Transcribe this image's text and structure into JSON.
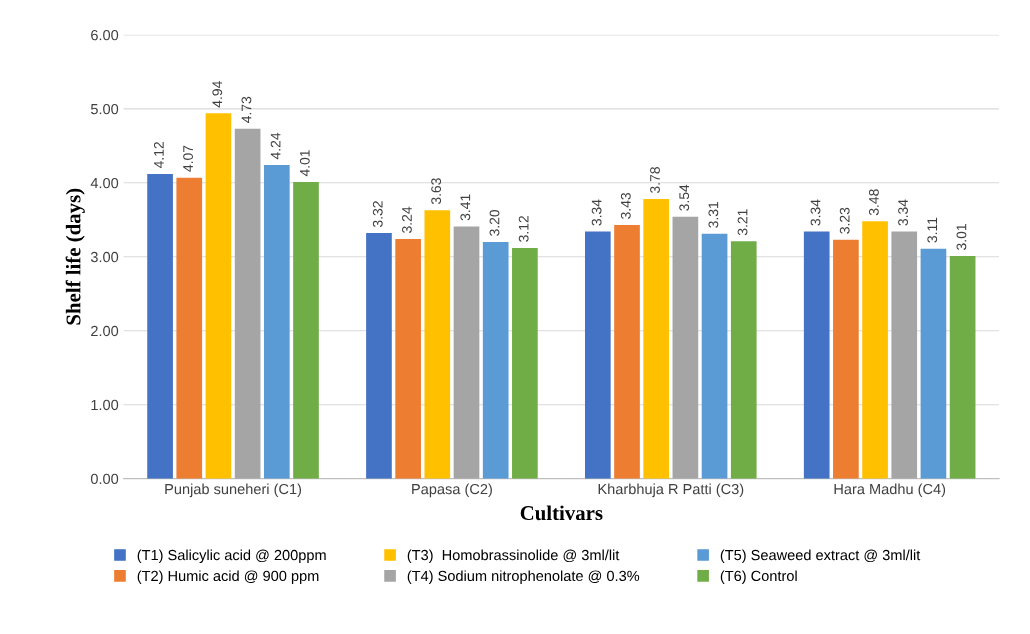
{
  "chart_data": {
    "type": "bar",
    "xlabel": "Cultivars",
    "ylabel": "Shelf life (days)",
    "categories": [
      "Punjab suneheri (C1)",
      "Papasa (C2)",
      "Kharbhuja R Patti (C3)",
      "Hara Madhu (C4)"
    ],
    "series": [
      {
        "name": "(T1) Salicylic acid @ 200ppm",
        "color": "#4472c4",
        "values": [
          4.12,
          3.32,
          3.34,
          3.34
        ],
        "value_labels": [
          "4.12",
          "3.32",
          "3.34",
          "3.34"
        ]
      },
      {
        "name": "(T2) Humic acid @ 900 ppm",
        "color": "#ed7d31",
        "values": [
          4.07,
          3.24,
          3.43,
          3.23
        ],
        "value_labels": [
          "4.07",
          "3.24",
          "3.43",
          "3.23"
        ]
      },
      {
        "name": "(T3)  Homobrassinolide @ 3ml/lit",
        "color": "#ffc000",
        "values": [
          4.94,
          3.63,
          3.78,
          3.48
        ],
        "value_labels": [
          "4.94",
          "3.63",
          "3.78",
          "3.48"
        ]
      },
      {
        "name": "(T4) Sodium nitrophenolate @ 0.3%",
        "color": "#a5a5a5",
        "values": [
          4.73,
          3.41,
          3.54,
          3.34
        ],
        "value_labels": [
          "4.73",
          "3.41",
          "3.54",
          "3.34"
        ]
      },
      {
        "name": "(T5) Seaweed extract @ 3ml/lit",
        "color": "#5b9bd5",
        "values": [
          4.24,
          3.2,
          3.31,
          3.11
        ],
        "value_labels": [
          "4.24",
          "3.20",
          "3.31",
          "3.11"
        ]
      },
      {
        "name": "(T6) Control",
        "color": "#70ad47",
        "values": [
          4.01,
          3.12,
          3.21,
          3.01
        ],
        "value_labels": [
          "4.01",
          "3.12",
          "3.21",
          "3.01"
        ]
      }
    ],
    "ylim": [
      0,
      6
    ],
    "yticks": [
      {
        "value": 0,
        "label": "0.00"
      },
      {
        "value": 1,
        "label": "1.00"
      },
      {
        "value": 2,
        "label": "2.00"
      },
      {
        "value": 3,
        "label": "3.00"
      },
      {
        "value": 4,
        "label": "4.00"
      },
      {
        "value": 5,
        "label": "5.00"
      },
      {
        "value": 6,
        "label": "6.00"
      }
    ],
    "grid": "y",
    "legend": "bottom"
  }
}
